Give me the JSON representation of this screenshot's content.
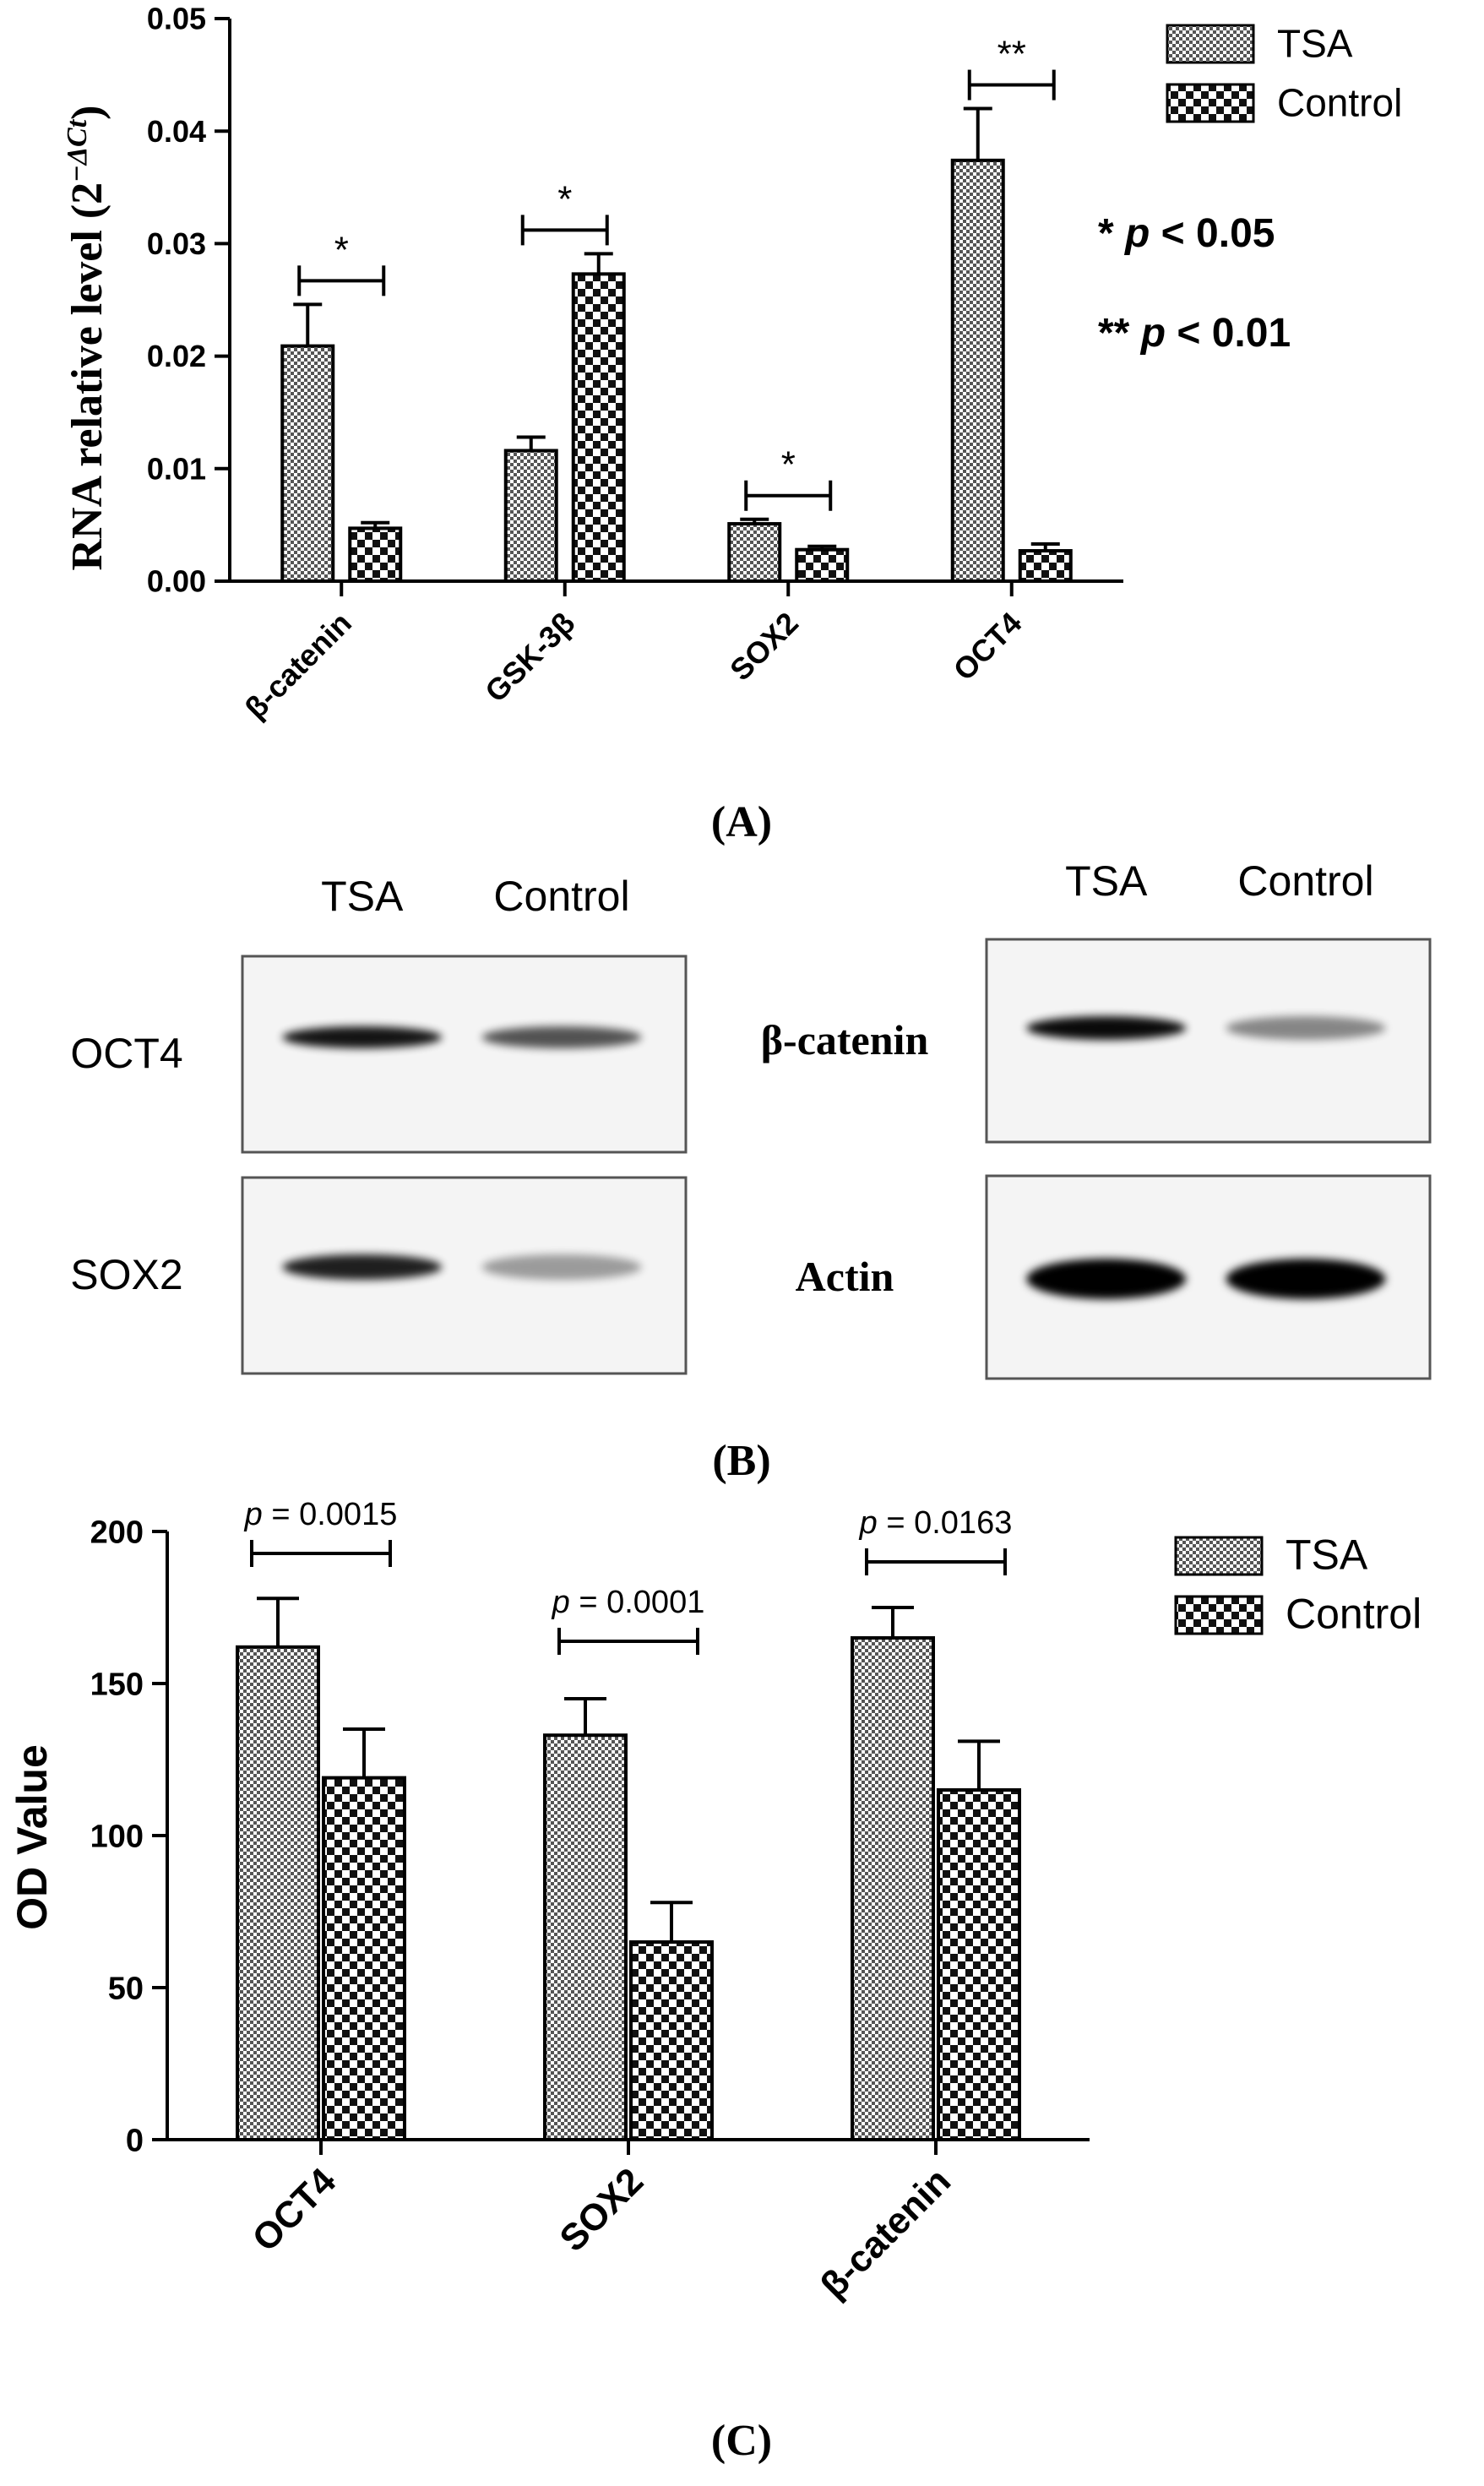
{
  "chart_data": [
    {
      "type": "bar",
      "panel_label": "(A)",
      "title": "",
      "xlabel": "",
      "ylabel": "RNA relative level (2",
      "ylabel_superscript": "−ΔCt",
      "ylabel_suffix": ")",
      "ylim": [
        0,
        0.05
      ],
      "yticks": [
        "0.00",
        "0.01",
        "0.02",
        "0.03",
        "0.04",
        "0.05"
      ],
      "ytick_values": [
        0,
        0.01,
        0.02,
        0.03,
        0.04,
        0.05
      ],
      "categories": [
        "β-catenin",
        "GSK-3β",
        "SOX2",
        "OCT4"
      ],
      "series": [
        {
          "name": "TSA",
          "values": [
            0.0209,
            0.0116,
            0.0051,
            0.0374
          ],
          "errors": [
            0.0037,
            0.0012,
            0.0004,
            0.0046
          ]
        },
        {
          "name": "Control",
          "values": [
            0.0047,
            0.0273,
            0.0028,
            0.0027
          ],
          "errors": [
            0.0005,
            0.0018,
            0.0003,
            0.0006
          ]
        }
      ],
      "significance": [
        "*",
        "*",
        "*",
        "**"
      ],
      "legend_position": "top-right",
      "notes": [
        {
          "mark": "*",
          "p": "p",
          "rest": " < 0.05"
        },
        {
          "mark": "**",
          "p": "p",
          "rest": " < 0.01"
        }
      ]
    },
    {
      "type": "bar",
      "panel_label": "(C)",
      "title": "",
      "xlabel": "",
      "ylabel": "OD Value",
      "ylim": [
        0,
        200
      ],
      "yticks": [
        "0",
        "50",
        "100",
        "150",
        "200"
      ],
      "ytick_values": [
        0,
        50,
        100,
        150,
        200
      ],
      "categories": [
        "OCT4",
        "SOX2",
        "β-catenin"
      ],
      "series": [
        {
          "name": "TSA",
          "values": [
            162,
            133,
            165
          ],
          "errors": [
            16,
            12,
            10
          ]
        },
        {
          "name": "Control",
          "values": [
            119,
            65,
            115
          ],
          "errors": [
            16,
            13,
            16
          ]
        }
      ],
      "pvalues": [
        {
          "p": "p",
          "rest": " = 0.0015"
        },
        {
          "p": "p",
          "rest": " = 0.0001"
        },
        {
          "p": "p",
          "rest": " = 0.0163"
        }
      ],
      "legend_position": "top-right"
    }
  ],
  "blot": {
    "panel_label": "(B)",
    "left": {
      "lanes": [
        "TSA",
        "Control"
      ],
      "rows": [
        {
          "label": "OCT4",
          "bands": [
            0.9,
            0.6
          ]
        },
        {
          "label": "SOX2",
          "bands": [
            0.85,
            0.25
          ]
        }
      ]
    },
    "right": {
      "lanes": [
        "TSA",
        "Control"
      ],
      "rows": [
        {
          "label": "β-catenin",
          "bands": [
            0.95,
            0.35
          ]
        },
        {
          "label": "Actin",
          "bands": [
            1.0,
            1.0
          ]
        }
      ]
    }
  },
  "colors": {
    "ink": "#000000",
    "film": "#f4f4f4",
    "film_border": "#555555"
  }
}
